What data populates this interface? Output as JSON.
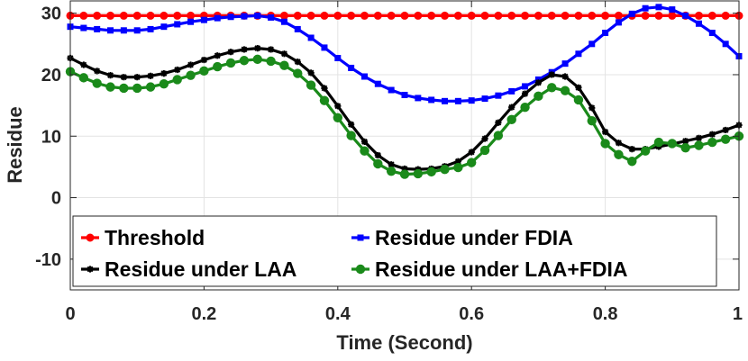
{
  "chart_data": {
    "type": "line",
    "xlabel": "Time (Second)",
    "ylabel": "Residue",
    "xlim": [
      0,
      1
    ],
    "ylim": [
      -15,
      32
    ],
    "xticks": [
      0,
      0.2,
      0.4,
      0.6,
      0.8,
      1
    ],
    "xtick_labels": [
      "0",
      "0.2",
      "0.4",
      "0.6",
      "0.8",
      "1"
    ],
    "yticks": [
      -10,
      0,
      10,
      20,
      30
    ],
    "ytick_labels": [
      "-10",
      "0",
      "10",
      "20",
      "30"
    ],
    "grid": true,
    "legend_position": "lower-left",
    "x": [
      0,
      0.02,
      0.04,
      0.06,
      0.08,
      0.1,
      0.12,
      0.14,
      0.16,
      0.18,
      0.2,
      0.22,
      0.24,
      0.26,
      0.28,
      0.3,
      0.32,
      0.34,
      0.36,
      0.38,
      0.4,
      0.42,
      0.44,
      0.46,
      0.48,
      0.5,
      0.52,
      0.54,
      0.56,
      0.58,
      0.6,
      0.62,
      0.64,
      0.66,
      0.68,
      0.7,
      0.72,
      0.74,
      0.76,
      0.78,
      0.8,
      0.82,
      0.84,
      0.86,
      0.88,
      0.9,
      0.92,
      0.94,
      0.96,
      0.98,
      1.0
    ],
    "series": [
      {
        "name": "Threshold",
        "color": "#ff0000",
        "marker": "circle",
        "values": [
          29.6,
          29.6,
          29.6,
          29.6,
          29.6,
          29.6,
          29.6,
          29.6,
          29.6,
          29.6,
          29.6,
          29.6,
          29.6,
          29.6,
          29.6,
          29.6,
          29.6,
          29.6,
          29.6,
          29.6,
          29.6,
          29.6,
          29.6,
          29.6,
          29.6,
          29.6,
          29.6,
          29.6,
          29.6,
          29.6,
          29.6,
          29.6,
          29.6,
          29.6,
          29.6,
          29.6,
          29.6,
          29.6,
          29.6,
          29.6,
          29.6,
          29.6,
          29.6,
          29.6,
          29.6,
          29.6,
          29.6,
          29.6,
          29.6,
          29.6,
          29.6
        ]
      },
      {
        "name": "Residue under FDIA",
        "color": "#0000ff",
        "marker": "square",
        "values": [
          27.8,
          27.6,
          27.4,
          27.2,
          27.2,
          27.2,
          27.4,
          27.8,
          28.2,
          28.6,
          28.9,
          29.2,
          29.4,
          29.5,
          29.6,
          29.3,
          28.6,
          27.4,
          26.0,
          24.4,
          22.7,
          21.1,
          19.7,
          18.5,
          17.5,
          16.7,
          16.2,
          15.9,
          15.7,
          15.7,
          15.8,
          16.1,
          16.6,
          17.3,
          18.1,
          19.2,
          20.4,
          21.8,
          23.4,
          25.0,
          26.8,
          28.5,
          29.9,
          30.8,
          31.0,
          30.6,
          29.6,
          28.3,
          26.8,
          25.0,
          23.0
        ]
      },
      {
        "name": "Residue under LAA",
        "color": "#000000",
        "marker": "star",
        "values": [
          22.7,
          21.6,
          20.6,
          19.9,
          19.6,
          19.6,
          19.8,
          20.2,
          20.8,
          21.6,
          22.4,
          23.1,
          23.7,
          24.1,
          24.3,
          24.1,
          23.4,
          22.1,
          20.3,
          17.8,
          14.9,
          11.9,
          9.1,
          6.9,
          5.4,
          4.7,
          4.6,
          4.7,
          5.1,
          5.9,
          7.4,
          9.6,
          12.2,
          14.7,
          16.9,
          18.7,
          20.0,
          19.7,
          17.9,
          14.6,
          10.7,
          8.9,
          7.9,
          7.9,
          8.3,
          8.7,
          9.2,
          9.7,
          10.3,
          11.0,
          11.8
        ]
      },
      {
        "name": "Residue under LAA+FDIA",
        "color": "#1a8a1a",
        "marker": "circle",
        "values": [
          20.5,
          19.5,
          18.6,
          18.0,
          17.8,
          17.8,
          18.0,
          18.5,
          19.2,
          19.9,
          20.6,
          21.3,
          21.9,
          22.3,
          22.5,
          22.2,
          21.5,
          20.2,
          18.3,
          15.8,
          13.0,
          10.1,
          7.6,
          5.5,
          4.3,
          3.8,
          3.9,
          4.2,
          4.6,
          4.9,
          5.7,
          7.7,
          10.1,
          12.7,
          14.7,
          16.5,
          17.9,
          17.4,
          15.9,
          12.5,
          8.8,
          7.0,
          5.9,
          7.6,
          9.0,
          8.8,
          8.1,
          8.5,
          9.0,
          9.5,
          10.0
        ]
      }
    ],
    "legend": [
      "Threshold",
      "Residue under FDIA",
      "Residue under LAA",
      "Residue under LAA+FDIA"
    ]
  }
}
